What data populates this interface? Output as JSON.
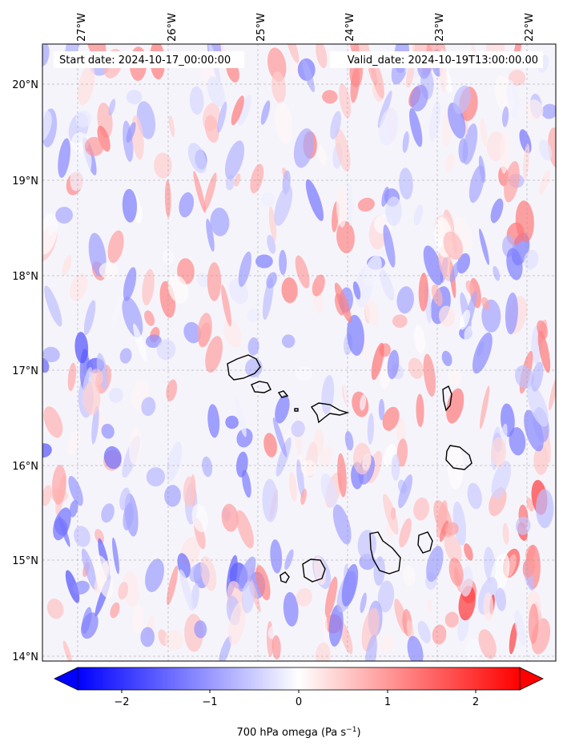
{
  "map": {
    "start_label": "Start date: 2024-10-17_00:00:00",
    "valid_label": "Valid_date: 2024-10-19T13:00:00.00",
    "lon_ticks": [
      "27°W",
      "26°W",
      "25°W",
      "24°W",
      "23°W",
      "22°W"
    ],
    "lat_ticks": [
      "20°N",
      "19°N",
      "18°N",
      "17°N",
      "16°N",
      "15°N",
      "14°N"
    ],
    "extent": {
      "lon_min": -27.35,
      "lon_max": -21.8,
      "lat_min": 13.95,
      "lat_max": 20.4
    },
    "gridlines": true,
    "field": "700 hPa omega"
  },
  "colorbar": {
    "label": "700 hPa omega (Pa s",
    "label_sup": "−1",
    "label_close": ")",
    "ticks": [
      "−2",
      "−1",
      "0",
      "1",
      "2"
    ],
    "tick_values": [
      -2,
      -1,
      0,
      1,
      2
    ],
    "vmin": -2.5,
    "vmax": 2.5,
    "extend": "both",
    "colormap": "bwr",
    "colors": {
      "negative": "#0000ff",
      "zero": "#ffffff",
      "positive": "#ff0000"
    }
  }
}
